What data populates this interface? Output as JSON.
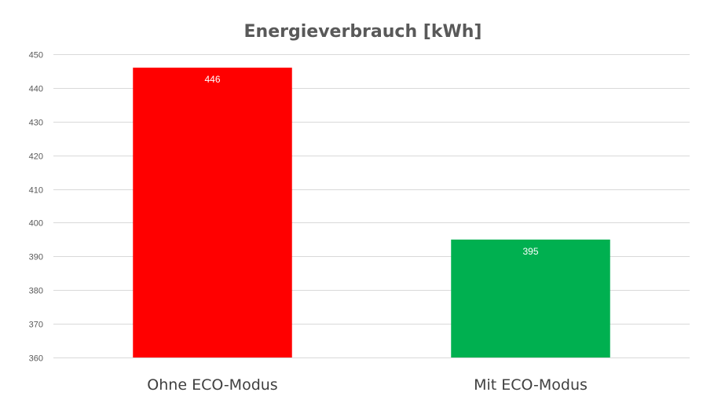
{
  "chart_data": {
    "type": "bar",
    "title": "Energieverbrauch [kWh]",
    "xlabel": "",
    "ylabel": "",
    "categories": [
      "Ohne ECO-Modus",
      "Mit ECO-Modus"
    ],
    "values": [
      446,
      395
    ],
    "data_labels": [
      "446",
      "395"
    ],
    "bar_colors": [
      "#ff0000",
      "#00b050"
    ],
    "ylim": [
      360,
      450
    ],
    "y_ticks": [
      360,
      370,
      380,
      390,
      400,
      410,
      420,
      430,
      440,
      450
    ],
    "y_tick_labels": [
      "360",
      "370",
      "380",
      "390",
      "400",
      "410",
      "420",
      "430",
      "440",
      "450"
    ],
    "grid": true,
    "legend": "none"
  }
}
